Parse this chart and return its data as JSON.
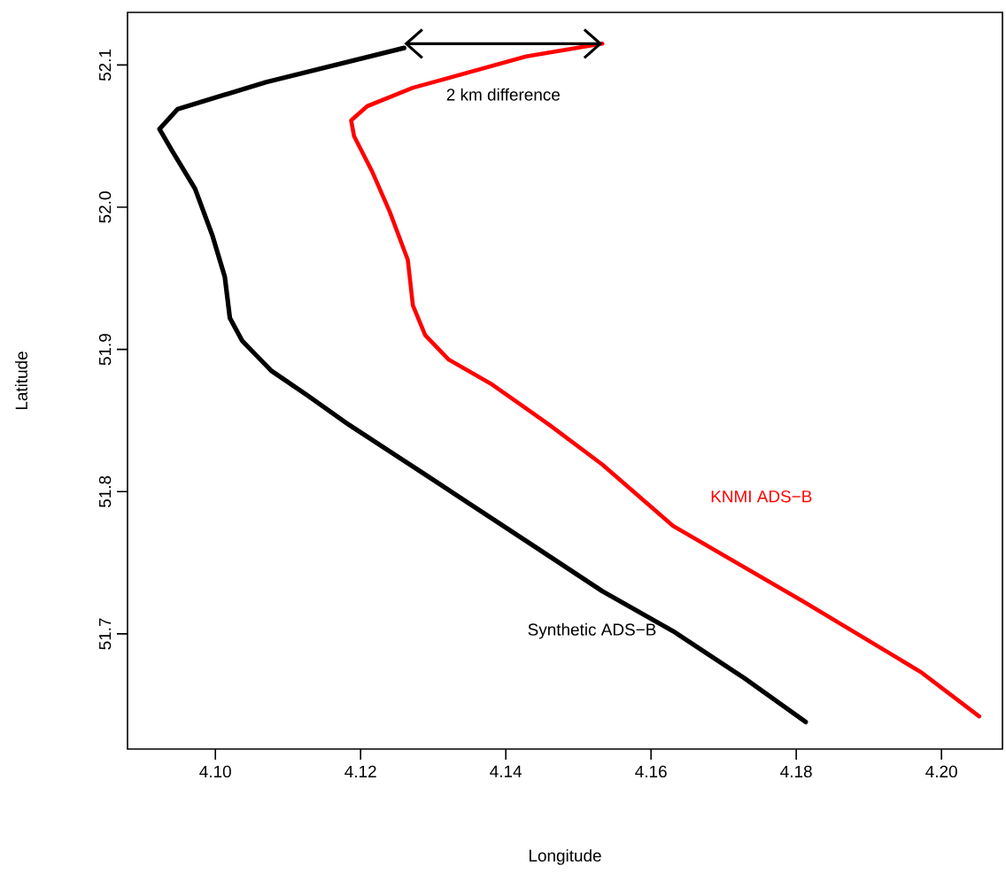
{
  "chart_data": {
    "type": "line",
    "xlabel": "Longitude",
    "ylabel": "Latitude",
    "xlim": [
      4.0879,
      4.2084
    ],
    "ylim": [
      51.619,
      52.137
    ],
    "xticks": [
      {
        "value": 4.1,
        "label": "4.10"
      },
      4.12,
      4.14,
      4.16,
      4.18,
      {
        "value": 4.2,
        "label": "4.20"
      }
    ],
    "yticks": [
      51.7,
      51.8,
      51.9,
      {
        "value": 52.0,
        "label": "52.0"
      },
      52.1
    ],
    "series": [
      {
        "name": "Synthetic ADS−B",
        "color": "#000000",
        "x": [
          4.126,
          4.107,
          4.0948,
          4.0923,
          4.094,
          4.0972,
          4.0996,
          4.1013,
          4.102,
          4.1037,
          4.1077,
          4.1126,
          4.1184,
          4.1289,
          4.1435,
          4.1533,
          4.163,
          4.1728,
          4.1813
        ],
        "values": [
          52.112,
          52.088,
          52.069,
          52.055,
          52.04,
          52.013,
          51.98,
          51.951,
          51.922,
          51.906,
          51.885,
          51.868,
          51.847,
          51.812,
          51.763,
          51.73,
          51.702,
          51.669,
          51.638
        ]
      },
      {
        "name": "KNMI ADS−B",
        "color": "#ff0000",
        "x": [
          4.1533,
          4.1428,
          4.1272,
          4.1209,
          4.1187,
          4.1191,
          4.1216,
          4.124,
          4.1265,
          4.1272,
          4.1289,
          4.1321,
          4.1379,
          4.1435,
          4.146,
          4.1533,
          4.163,
          4.1809,
          4.1972,
          4.2052
        ],
        "values": [
          52.115,
          52.106,
          52.084,
          52.071,
          52.061,
          52.05,
          52.025,
          51.997,
          51.963,
          51.931,
          51.91,
          51.893,
          51.876,
          51.856,
          51.847,
          51.819,
          51.776,
          51.723,
          51.673,
          51.642
        ]
      }
    ],
    "annotations": [
      "2 km difference"
    ]
  }
}
